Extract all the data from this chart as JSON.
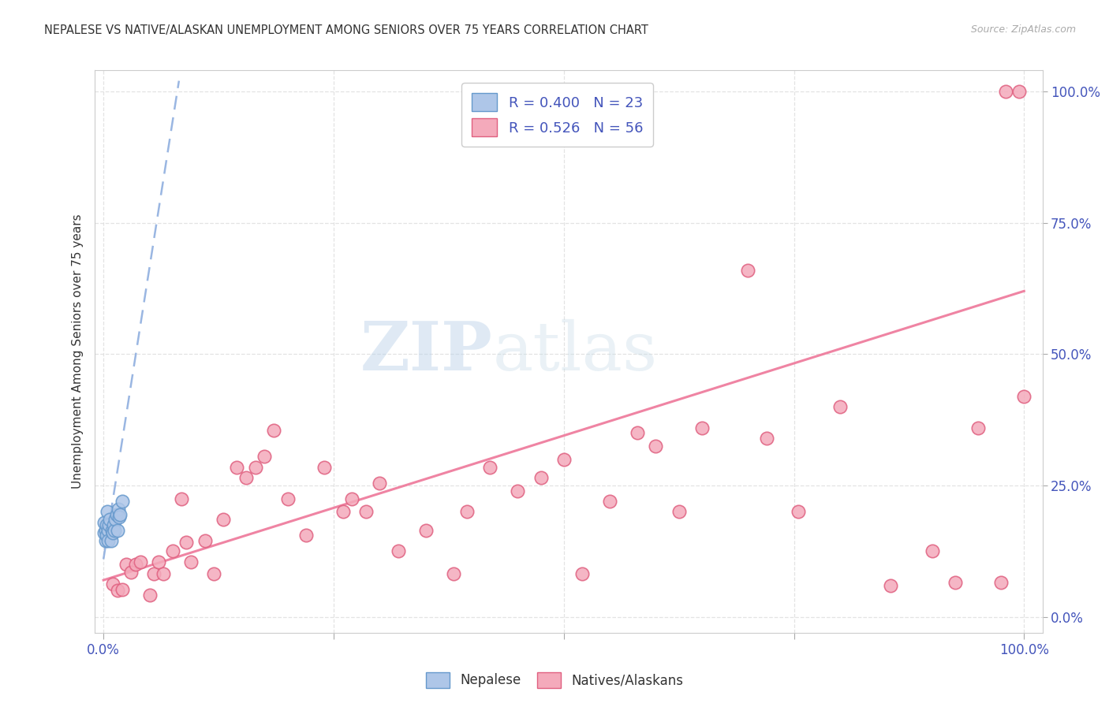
{
  "title": "NEPALESE VS NATIVE/ALASKAN UNEMPLOYMENT AMONG SENIORS OVER 75 YEARS CORRELATION CHART",
  "source": "Source: ZipAtlas.com",
  "ylabel": "Unemployment Among Seniors over 75 years",
  "watermark_zip": "ZIP",
  "watermark_atlas": "atlas",
  "xlim": [
    -0.01,
    1.02
  ],
  "ylim": [
    -0.03,
    1.04
  ],
  "xticks": [
    0.0,
    0.25,
    0.5,
    0.75,
    1.0
  ],
  "yticks": [
    0.0,
    0.25,
    0.5,
    0.75,
    1.0
  ],
  "nepalese_color_face": "#aec6e8",
  "nepalese_color_edge": "#6699cc",
  "natives_color_face": "#f4aabb",
  "natives_color_edge": "#e06080",
  "trendline1_color": "#88aadd",
  "trendline2_color": "#ee7799",
  "label_color": "#4455bb",
  "title_color": "#333333",
  "source_color": "#aaaaaa",
  "grid_color": "#dddddd",
  "nepalese_x": [
    0.001,
    0.001,
    0.002,
    0.002,
    0.003,
    0.003,
    0.004,
    0.005,
    0.005,
    0.006,
    0.007,
    0.008,
    0.009,
    0.01,
    0.011,
    0.012,
    0.013,
    0.014,
    0.015,
    0.016,
    0.017,
    0.018,
    0.02
  ],
  "nepalese_y": [
    0.18,
    0.16,
    0.165,
    0.145,
    0.175,
    0.155,
    0.2,
    0.165,
    0.145,
    0.175,
    0.185,
    0.145,
    0.165,
    0.16,
    0.175,
    0.165,
    0.185,
    0.195,
    0.165,
    0.205,
    0.19,
    0.195,
    0.22
  ],
  "natives_x": [
    0.01,
    0.015,
    0.02,
    0.025,
    0.03,
    0.035,
    0.04,
    0.05,
    0.055,
    0.06,
    0.065,
    0.075,
    0.085,
    0.09,
    0.095,
    0.11,
    0.12,
    0.13,
    0.145,
    0.155,
    0.165,
    0.175,
    0.185,
    0.2,
    0.22,
    0.24,
    0.26,
    0.27,
    0.285,
    0.3,
    0.32,
    0.35,
    0.38,
    0.395,
    0.42,
    0.45,
    0.475,
    0.5,
    0.52,
    0.55,
    0.58,
    0.6,
    0.625,
    0.65,
    0.7,
    0.72,
    0.755,
    0.8,
    0.855,
    0.9,
    0.925,
    0.95,
    0.975,
    1.0,
    0.98,
    0.995
  ],
  "natives_y": [
    0.062,
    0.05,
    0.052,
    0.1,
    0.085,
    0.1,
    0.105,
    0.042,
    0.082,
    0.105,
    0.082,
    0.125,
    0.225,
    0.142,
    0.105,
    0.145,
    0.082,
    0.185,
    0.285,
    0.265,
    0.285,
    0.305,
    0.355,
    0.225,
    0.155,
    0.285,
    0.2,
    0.225,
    0.2,
    0.255,
    0.125,
    0.165,
    0.082,
    0.2,
    0.285,
    0.24,
    0.265,
    0.3,
    0.082,
    0.22,
    0.35,
    0.325,
    0.2,
    0.36,
    0.66,
    0.34,
    0.2,
    0.4,
    0.06,
    0.125,
    0.065,
    0.36,
    0.065,
    0.42,
    1.0,
    1.0
  ],
  "trendline1_x0": 0.0,
  "trendline1_y0": 0.11,
  "trendline1_x1": 0.082,
  "trendline1_y1": 1.02,
  "trendline2_x0": 0.0,
  "trendline2_y0": 0.07,
  "trendline2_x1": 1.0,
  "trendline2_y1": 0.62,
  "legend_items": [
    {
      "label": "R = 0.400   N = 23",
      "color_face": "#aec6e8",
      "color_edge": "#6699cc"
    },
    {
      "label": "R = 0.526   N = 56",
      "color_face": "#f4aabb",
      "color_edge": "#e06080"
    }
  ],
  "bottom_legend": [
    {
      "label": "Nepalese",
      "color_face": "#aec6e8",
      "color_edge": "#6699cc"
    },
    {
      "label": "Natives/Alaskans",
      "color_face": "#f4aabb",
      "color_edge": "#e06080"
    }
  ]
}
